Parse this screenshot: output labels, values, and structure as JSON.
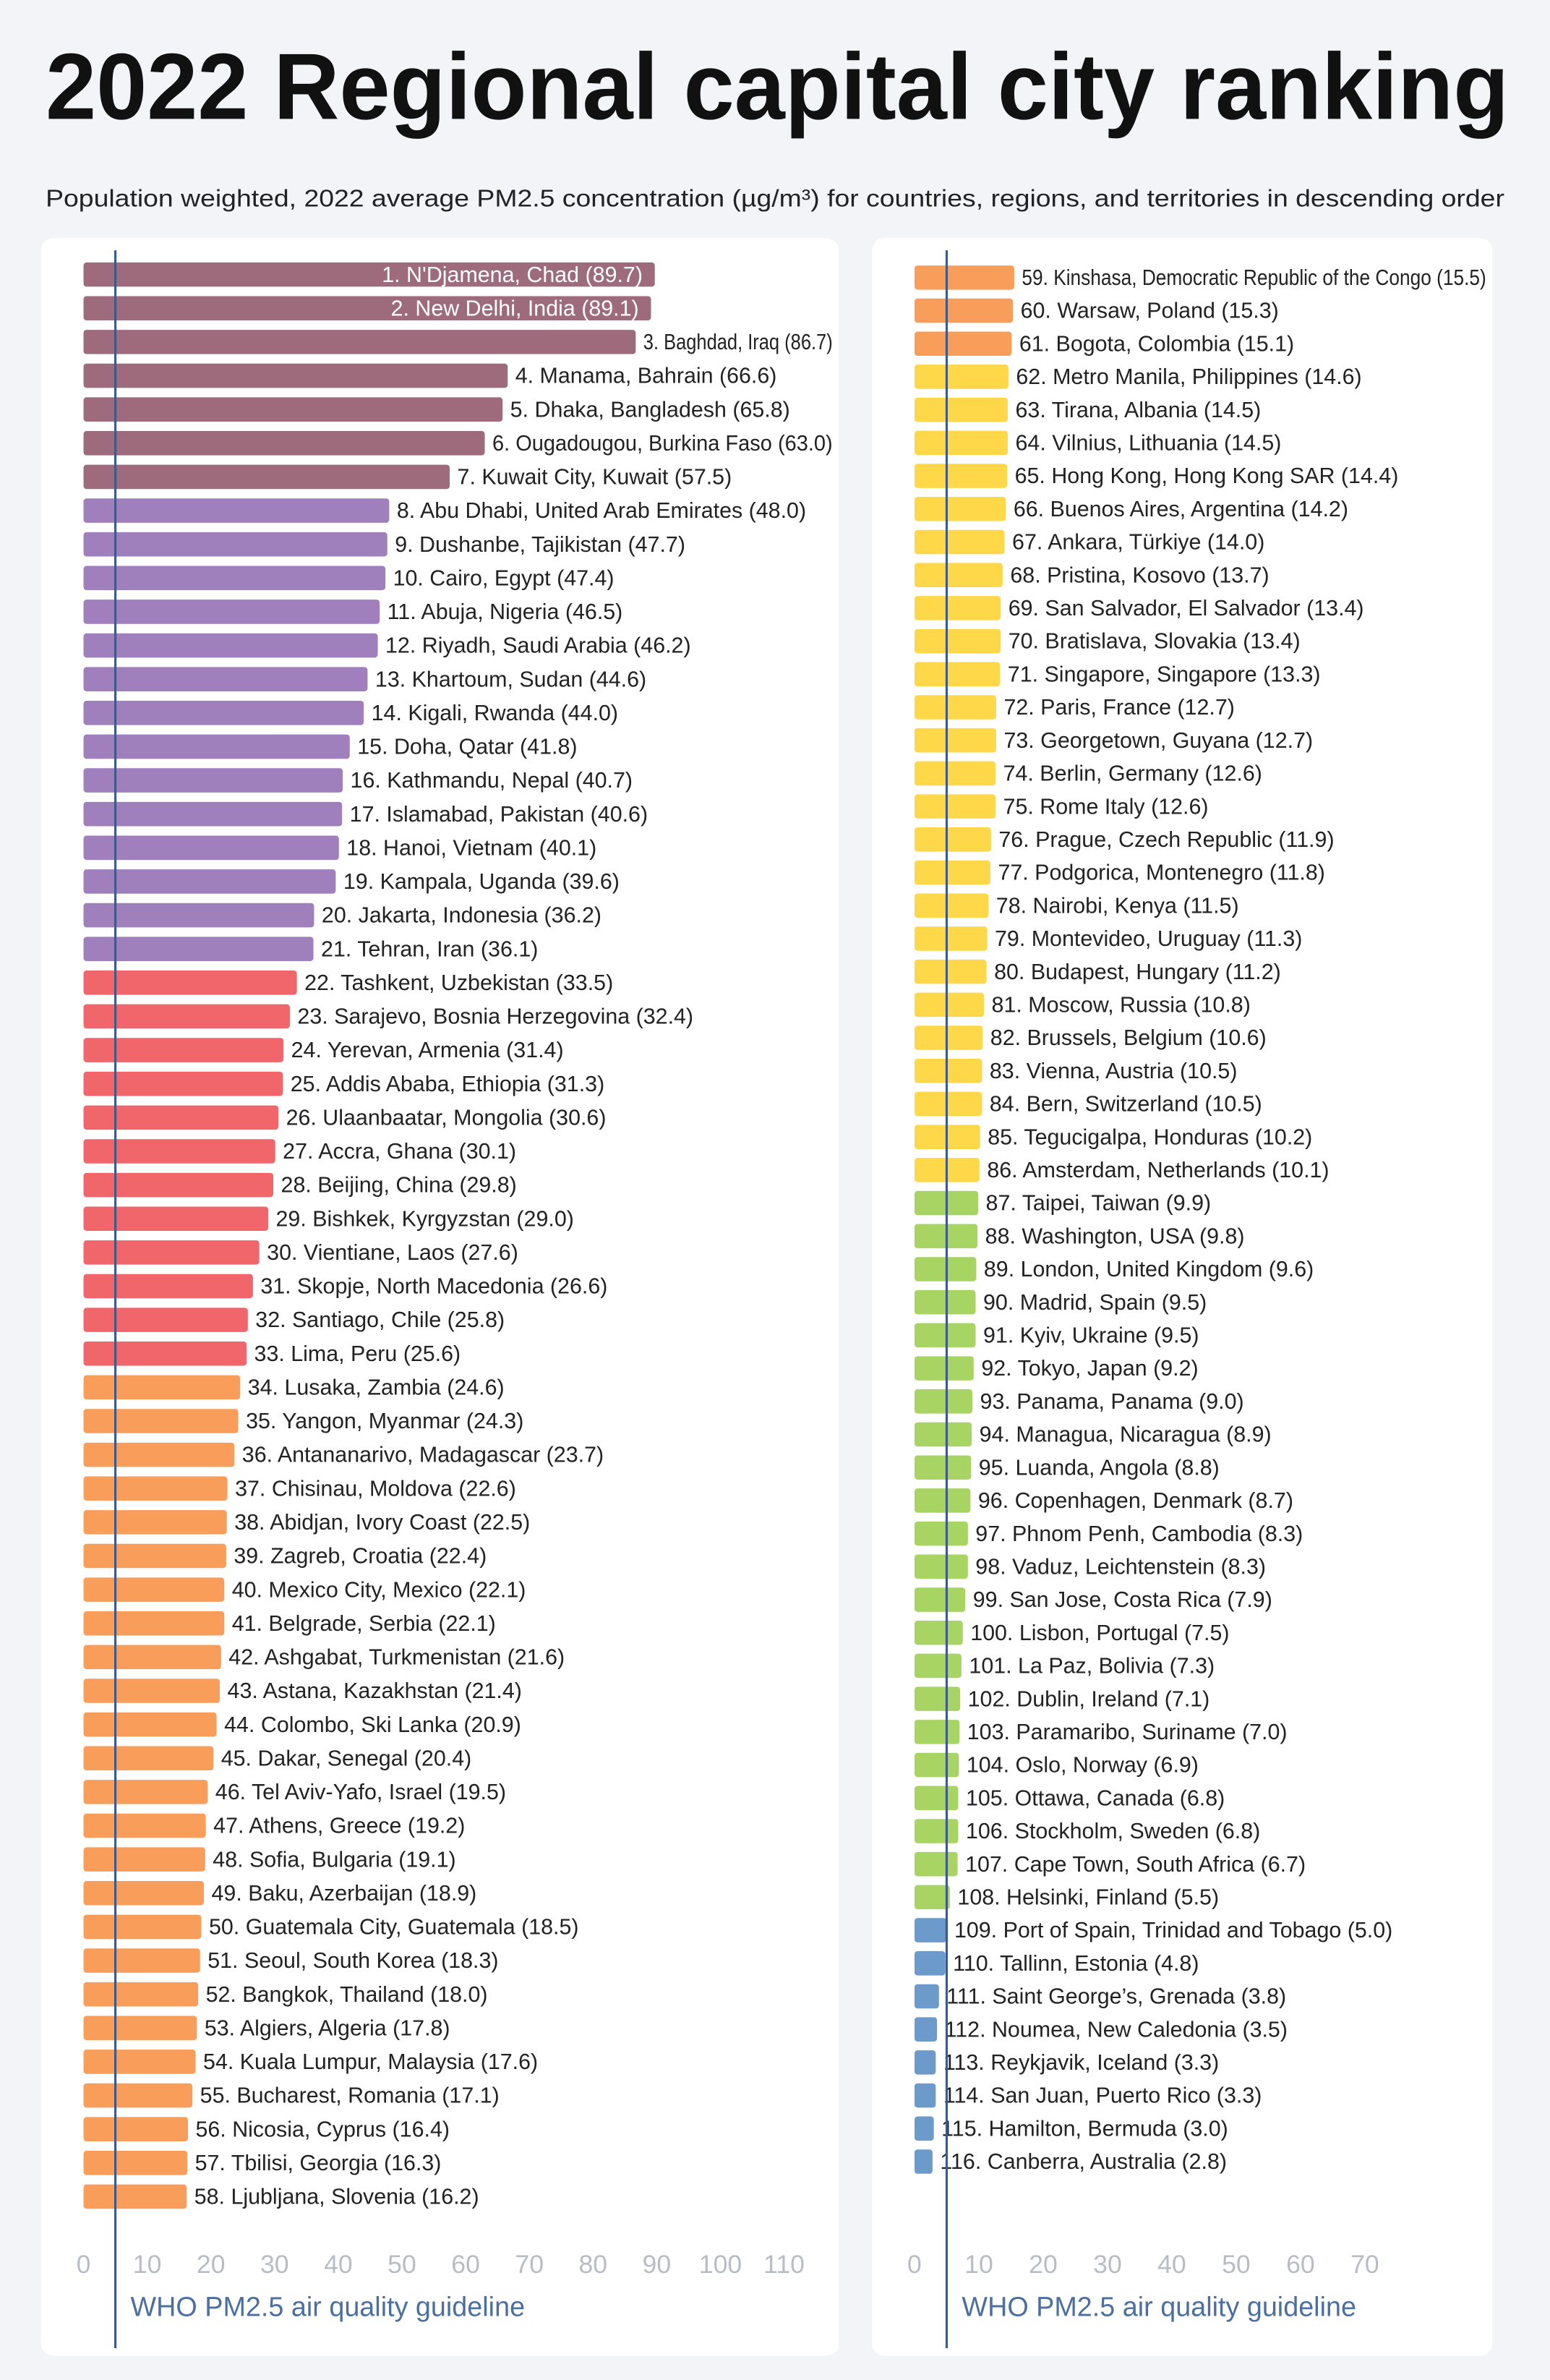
{
  "title": "2022 Regional capital city ranking",
  "subtitle": "Population weighted, 2022 average PM2.5 concentration (µg/m³) for countries, regions, and territories in descending order",
  "chart_data": [
    {
      "type": "bar",
      "orientation": "horizontal",
      "categories": [
        "1. N'Djamena, Chad (89.7)",
        "2. New Delhi, India (89.1)",
        "3. Baghdad, Iraq (86.7)",
        "4. Manama, Bahrain (66.6)",
        "5. Dhaka, Bangladesh (65.8)",
        "6. Ougadougou, Burkina Faso (63.0)",
        "7. Kuwait City, Kuwait (57.5)",
        "8. Abu Dhabi, United Arab Emirates (48.0)",
        "9. Dushanbe, Tajikistan (47.7)",
        "10. Cairo, Egypt (47.4)",
        "11. Abuja, Nigeria (46.5)",
        "12. Riyadh, Saudi Arabia (46.2)",
        "13. Khartoum, Sudan (44.6)",
        "14. Kigali, Rwanda (44.0)",
        "15. Doha, Qatar (41.8)",
        "16. Kathmandu, Nepal (40.7)",
        "17. Islamabad, Pakistan (40.6)",
        "18. Hanoi, Vietnam (40.1)",
        "19. Kampala, Uganda (39.6)",
        "20. Jakarta, Indonesia (36.2)",
        "21. Tehran, Iran (36.1)",
        "22. Tashkent, Uzbekistan (33.5)",
        "23. Sarajevo, Bosnia Herzegovina (32.4)",
        "24. Yerevan, Armenia (31.4)",
        "25. Addis Ababa, Ethiopia (31.3)",
        "26. Ulaanbaatar, Mongolia (30.6)",
        "27. Accra, Ghana (30.1)",
        "28. Beijing, China (29.8)",
        "29. Bishkek, Kyrgyzstan (29.0)",
        "30. Vientiane, Laos (27.6)",
        "31. Skopje, North Macedonia (26.6)",
        "32. Santiago, Chile (25.8)",
        "33. Lima, Peru (25.6)",
        "34. Lusaka, Zambia (24.6)",
        "35. Yangon, Myanmar (24.3)",
        "36. Antananarivo, Madagascar (23.7)",
        "37. Chisinau, Moldova (22.6)",
        "38. Abidjan, Ivory Coast (22.5)",
        "39. Zagreb, Croatia (22.4)",
        "40. Mexico City, Mexico (22.1)",
        "41. Belgrade, Serbia (22.1)",
        "42. Ashgabat, Turkmenistan (21.6)",
        "43. Astana, Kazakhstan (21.4)",
        "44. Colombo, Ski Lanka (20.9)",
        "45. Dakar, Senegal (20.4)",
        "46. Tel Aviv-Yafo, Israel (19.5)",
        "47. Athens, Greece (19.2)",
        "48. Sofia, Bulgaria (19.1)",
        "49. Baku, Azerbaijan (18.9)",
        "50. Guatemala City, Guatemala (18.5)",
        "51. Seoul, South Korea (18.3)",
        "52. Bangkok, Thailand (18.0)",
        "53. Algiers, Algeria (17.8)",
        "54. Kuala Lumpur, Malaysia (17.6)",
        "55. Bucharest, Romania (17.1)",
        "56. Nicosia, Cyprus (16.4)",
        "57. Tbilisi, Georgia (16.3)",
        "58. Ljubljana, Slovenia (16.2)"
      ],
      "values": [
        89.7,
        89.1,
        86.7,
        66.6,
        65.8,
        63.0,
        57.5,
        48.0,
        47.7,
        47.4,
        46.5,
        46.2,
        44.6,
        44.0,
        41.8,
        40.7,
        40.6,
        40.1,
        39.6,
        36.2,
        36.1,
        33.5,
        32.4,
        31.4,
        31.3,
        30.6,
        30.1,
        29.8,
        29.0,
        27.6,
        26.6,
        25.8,
        25.6,
        24.6,
        24.3,
        23.7,
        22.6,
        22.5,
        22.4,
        22.1,
        22.1,
        21.6,
        21.4,
        20.9,
        20.4,
        19.5,
        19.2,
        19.1,
        18.9,
        18.5,
        18.3,
        18.0,
        17.8,
        17.6,
        17.1,
        16.4,
        16.3,
        16.2
      ],
      "colors": [
        "#9e6b7c",
        "#9e6b7c",
        "#9e6b7c",
        "#9e6b7c",
        "#9e6b7c",
        "#9e6b7c",
        "#9e6b7c",
        "#a07fbd",
        "#a07fbd",
        "#a07fbd",
        "#a07fbd",
        "#a07fbd",
        "#a07fbd",
        "#a07fbd",
        "#a07fbd",
        "#a07fbd",
        "#a07fbd",
        "#a07fbd",
        "#a07fbd",
        "#a07fbd",
        "#a07fbd",
        "#f0666a",
        "#f0666a",
        "#f0666a",
        "#f0666a",
        "#f0666a",
        "#f0666a",
        "#f0666a",
        "#f0666a",
        "#f0666a",
        "#f0666a",
        "#f0666a",
        "#f0666a",
        "#f99e5a",
        "#f99e5a",
        "#f99e5a",
        "#f99e5a",
        "#f99e5a",
        "#f99e5a",
        "#f99e5a",
        "#f99e5a",
        "#f99e5a",
        "#f99e5a",
        "#f99e5a",
        "#f99e5a",
        "#f99e5a",
        "#f99e5a",
        "#f99e5a",
        "#f99e5a",
        "#f99e5a",
        "#f99e5a",
        "#f99e5a",
        "#f99e5a",
        "#f99e5a",
        "#f99e5a",
        "#f99e5a",
        "#f99e5a",
        "#f99e5a"
      ],
      "xlim": [
        0,
        110
      ],
      "xticks": [
        0,
        10,
        20,
        30,
        40,
        50,
        60,
        70,
        80,
        90,
        100,
        110
      ],
      "guideline": {
        "value": 5,
        "label": "WHO PM2.5 air quality guideline"
      }
    },
    {
      "type": "bar",
      "orientation": "horizontal",
      "categories": [
        "59. Kinshasa, Democratic Republic of the Congo (15.5)",
        "60. Warsaw, Poland (15.3)",
        "61. Bogota, Colombia (15.1)",
        "62. Metro Manila, Philippines (14.6)",
        "63. Tirana, Albania (14.5)",
        "64. Vilnius, Lithuania (14.5)",
        "65. Hong Kong, Hong Kong SAR (14.4)",
        "66. Buenos Aires, Argentina (14.2)",
        "67. Ankara, Türkiye (14.0)",
        "68. Pristina, Kosovo (13.7)",
        "69. San Salvador, El Salvador (13.4)",
        "70. Bratislava, Slovakia (13.4)",
        "71. Singapore, Singapore (13.3)",
        "72. Paris, France (12.7)",
        "73. Georgetown, Guyana (12.7)",
        "74. Berlin, Germany (12.6)",
        "75. Rome Italy (12.6)",
        "76. Prague, Czech Republic (11.9)",
        "77. Podgorica, Montenegro (11.8)",
        "78. Nairobi, Kenya (11.5)",
        "79. Montevideo, Uruguay (11.3)",
        "80. Budapest, Hungary (11.2)",
        "81. Moscow, Russia (10.8)",
        "82. Brussels, Belgium (10.6)",
        "83. Vienna, Austria (10.5)",
        "84. Bern, Switzerland (10.5)",
        "85. Tegucigalpa, Honduras (10.2)",
        "86. Amsterdam, Netherlands (10.1)",
        "87. Taipei, Taiwan (9.9)",
        "88. Washington, USA (9.8)",
        "89. London, United Kingdom (9.6)",
        "90. Madrid, Spain (9.5)",
        "91. Kyiv, Ukraine (9.5)",
        "92. Tokyo, Japan (9.2)",
        "93. Panama, Panama (9.0)",
        "94. Managua, Nicaragua (8.9)",
        "95. Luanda, Angola (8.8)",
        "96. Copenhagen, Denmark (8.7)",
        "97. Phnom Penh, Cambodia (8.3)",
        "98. Vaduz, Leichtenstein (8.3)",
        "99. San Jose, Costa Rica (7.9)",
        "100. Lisbon, Portugal (7.5)",
        "101. La Paz, Bolivia (7.3)",
        "102. Dublin, Ireland (7.1)",
        "103. Paramaribo, Suriname (7.0)",
        "104. Oslo, Norway (6.9)",
        "105. Ottawa, Canada (6.8)",
        "106. Stockholm, Sweden (6.8)",
        "107. Cape Town, South Africa (6.7)",
        "108. Helsinki, Finland (5.5)",
        "109. Port of Spain, Trinidad and Tobago (5.0)",
        "110. Tallinn, Estonia (4.8)",
        "111. Saint George’s, Grenada (3.8)",
        "112. Noumea, New Caledonia (3.5)",
        "113. Reykjavik, Iceland (3.3)",
        "114. San Juan, Puerto Rico (3.3)",
        "115. Hamilton, Bermuda (3.0)",
        "116. Canberra, Australia (2.8)"
      ],
      "values": [
        15.5,
        15.3,
        15.1,
        14.6,
        14.5,
        14.5,
        14.4,
        14.2,
        14.0,
        13.7,
        13.4,
        13.4,
        13.3,
        12.7,
        12.7,
        12.6,
        12.6,
        11.9,
        11.8,
        11.5,
        11.3,
        11.2,
        10.8,
        10.6,
        10.5,
        10.5,
        10.2,
        10.1,
        9.9,
        9.8,
        9.6,
        9.5,
        9.5,
        9.2,
        9.0,
        8.9,
        8.8,
        8.7,
        8.3,
        8.3,
        7.9,
        7.5,
        7.3,
        7.1,
        7.0,
        6.9,
        6.8,
        6.8,
        6.7,
        5.5,
        5.0,
        4.8,
        3.8,
        3.5,
        3.3,
        3.3,
        3.0,
        2.8
      ],
      "colors": [
        "#f99e5a",
        "#f99e5a",
        "#f99e5a",
        "#ffd84a",
        "#ffd84a",
        "#ffd84a",
        "#ffd84a",
        "#ffd84a",
        "#ffd84a",
        "#ffd84a",
        "#ffd84a",
        "#ffd84a",
        "#ffd84a",
        "#ffd84a",
        "#ffd84a",
        "#ffd84a",
        "#ffd84a",
        "#ffd84a",
        "#ffd84a",
        "#ffd84a",
        "#ffd84a",
        "#ffd84a",
        "#ffd84a",
        "#ffd84a",
        "#ffd84a",
        "#ffd84a",
        "#ffd84a",
        "#ffd84a",
        "#a8d464",
        "#a8d464",
        "#a8d464",
        "#a8d464",
        "#a8d464",
        "#a8d464",
        "#a8d464",
        "#a8d464",
        "#a8d464",
        "#a8d464",
        "#a8d464",
        "#a8d464",
        "#a8d464",
        "#a8d464",
        "#a8d464",
        "#a8d464",
        "#a8d464",
        "#a8d464",
        "#a8d464",
        "#a8d464",
        "#a8d464",
        "#a8d464",
        "#6b9acb",
        "#6b9acb",
        "#6b9acb",
        "#6b9acb",
        "#6b9acb",
        "#6b9acb",
        "#6b9acb",
        "#6b9acb"
      ],
      "xlim": [
        0,
        70
      ],
      "xticks": [
        0,
        10,
        20,
        30,
        40,
        50,
        60,
        70
      ],
      "guideline": {
        "value": 5,
        "label": "WHO PM2.5 air quality guideline"
      }
    }
  ]
}
